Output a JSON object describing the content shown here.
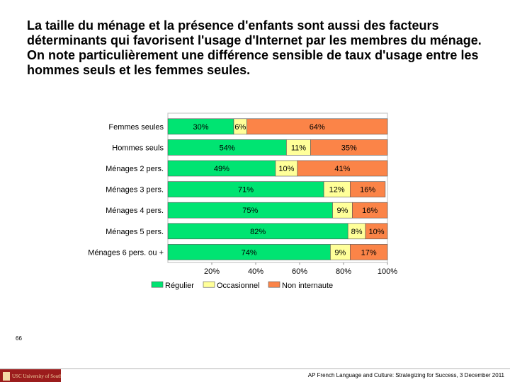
{
  "heading": "La taille du ménage et la présence d'enfants sont aussi des facteurs déterminants qui favorisent l'usage d'Internet par les membres du ménage. On note particulièrement une différence sensible de taux d'usage entre les hommes seuls et les femmes seules.",
  "chart_data": {
    "type": "bar",
    "stacked": true,
    "orientation": "horizontal",
    "categories": [
      "Femmes seules",
      "Hommes seuls",
      "Ménages 2 pers.",
      "Ménages 3 pers.",
      "Ménages 4 pers.",
      "Ménages 5 pers.",
      "Ménages 6 pers. ou +"
    ],
    "series": [
      {
        "name": "Régulier",
        "color": "#00e472",
        "values": [
          30,
          54,
          49,
          71,
          75,
          82,
          74
        ],
        "labels": [
          "30%",
          "54%",
          "49%",
          "71%",
          "75%",
          "82%",
          "74%"
        ]
      },
      {
        "name": "Occasionnel",
        "color": "#ffff99",
        "values": [
          6,
          11,
          10,
          12,
          9,
          8,
          9
        ],
        "labels": [
          "6%",
          "11%",
          "10%",
          "12%",
          "9%",
          "8%",
          "9%"
        ]
      },
      {
        "name": "Non internaute",
        "color": "#fb8448",
        "values": [
          64,
          35,
          41,
          16,
          16,
          10,
          17
        ],
        "labels": [
          "64%",
          "35%",
          "41%",
          "16%",
          "16%",
          "10%",
          "17%"
        ]
      }
    ],
    "xlim": [
      0,
      100
    ],
    "x_ticks": [
      "20%",
      "40%",
      "60%",
      "80%",
      "100%"
    ],
    "x_tick_values": [
      20,
      40,
      60,
      80,
      100
    ],
    "legend_position": "bottom",
    "grid": false
  },
  "footer": {
    "page_number": "66",
    "logo_text": "USC University of Southern California",
    "caption": "AP French Language and Culture: Strategizing for Success, 3 December 2011"
  }
}
